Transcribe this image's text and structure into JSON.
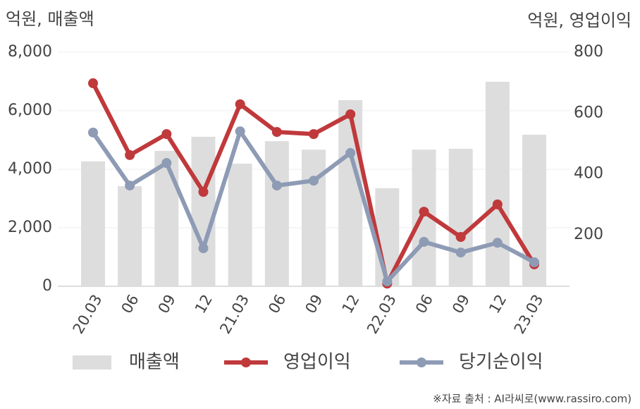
{
  "chart_data": {
    "type": "bar",
    "y_label": "억원, 매출액",
    "y2_label": "억원, 영업이익",
    "source": "※자료 출처 : AI라씨로(www.rassiro.com)",
    "categories": [
      "20.03",
      "06",
      "09",
      "12",
      "21.03",
      "06",
      "09",
      "12",
      "22.03",
      "06",
      "09",
      "12",
      "23.03"
    ],
    "series": [
      {
        "name": "매출액",
        "type": "bar",
        "color": "#dddddd",
        "values": [
          4270,
          3420,
          4630,
          5110,
          4190,
          4960,
          4670,
          6360,
          3350,
          4670,
          4700,
          6990,
          5180
        ]
      },
      {
        "name": "영업이익",
        "type": "line",
        "color": "#c0393b",
        "axis": "y2",
        "values": [
          698,
          462,
          531,
          341,
          629,
          538,
          531,
          596,
          40,
          276,
          193,
          300,
          103
        ]
      },
      {
        "name": "당기순이익",
        "type": "line",
        "color": "#8e9bb5",
        "axis": "y2",
        "values": [
          536,
          362,
          436,
          156,
          540,
          362,
          378,
          469,
          47,
          177,
          142,
          174,
          110
        ]
      }
    ],
    "ylim": [
      0,
      8000
    ],
    "yticks": [
      0,
      {
        "value": 2000,
        "label": "2,000"
      },
      {
        "value": 4000,
        "label": "4,000"
      },
      {
        "value": 6000,
        "label": "6,000"
      },
      {
        "value": 8000,
        "label": "8,000"
      }
    ],
    "y2lim": [
      31,
      800
    ],
    "y2ticks": [
      200,
      400,
      600,
      800
    ],
    "grid": true,
    "legend": "bottom"
  }
}
